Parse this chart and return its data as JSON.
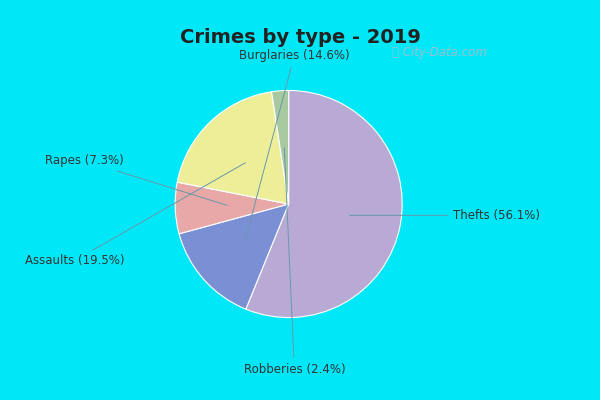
{
  "title": "Crimes by type - 2019",
  "labels": [
    "Thefts",
    "Burglaries",
    "Rapes",
    "Assaults",
    "Robberies"
  ],
  "values": [
    56.1,
    14.6,
    7.3,
    19.5,
    2.4
  ],
  "colors": [
    "#b8aad4",
    "#7b8fd4",
    "#e8a8a8",
    "#eeee99",
    "#a8c8a0"
  ],
  "label_texts": [
    "Thefts (56.1%)",
    "Burglaries (14.6%)",
    "Rapes (7.3%)",
    "Assaults (19.5%)",
    "Robberies (2.4%)"
  ],
  "outer_bg": "#00e8f8",
  "inner_bg_left": "#c8e8d8",
  "inner_bg_right": "#e8f0f8",
  "title_fontsize": 14,
  "startangle": 90,
  "label_fontsize": 8.5
}
